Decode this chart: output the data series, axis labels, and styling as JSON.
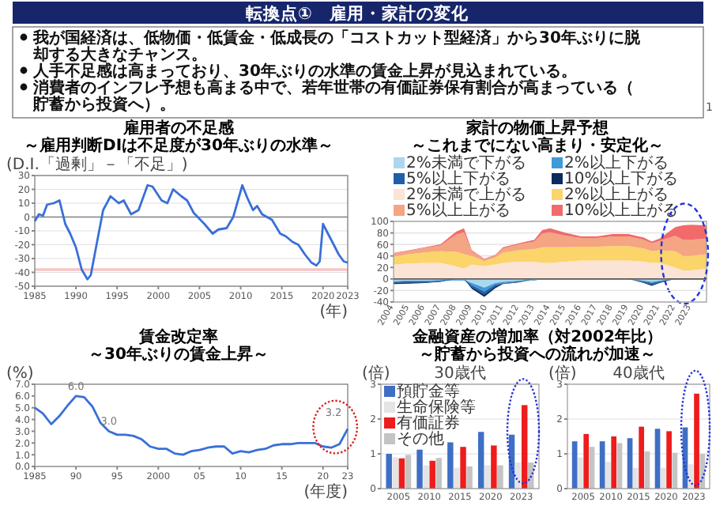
{
  "chart_data": [
    {
      "type": "other",
      "title": "転換点①　雇用・家計の変化",
      "annotations": [
        "我が国経済は、低物価・低賃金・低成長の「コストカット型経済」から30年ぶりに脱却する大きなチャンス。",
        "人手不足感は高まっており、30年ぶりの水準の賃金上昇が見込まれている。",
        "消費者のインフレ予想も高まる中で、若年世帯の有価証券保有割合が高まっている（貯蓄から投資へ）。",
        "1"
      ]
    },
    {
      "type": "line",
      "title": "雇用者の不足感",
      "subtitle": "～雇用判断DIは不足度が30年ぶりの水準～",
      "ylabel": "(D.I.「過剰」－「不足」)",
      "xlabel": "(年)",
      "color": "#3a6fd8",
      "x": [
        1985,
        1985.5,
        1986,
        1986.5,
        1987.3,
        1988,
        1988.7,
        1989.3,
        1990,
        1990.7,
        1991.4,
        1991.8,
        1992.5,
        1993.3,
        1994.2,
        1995.2,
        1995.8,
        1996.7,
        1997.6,
        1998.7,
        1999.3,
        2000.4,
        2001.1,
        2001.8,
        2002.8,
        2003.5,
        2004.3,
        2005.6,
        2006.6,
        2007.3,
        2008.3,
        2009.1,
        2010.2,
        2010.8,
        2011.5,
        2012,
        2012.6,
        2013.8,
        2014.8,
        2015.5,
        2016.3,
        2017,
        2017.8,
        2018.6,
        2019.2,
        2019.6,
        2020,
        2020.6,
        2021.3,
        2021.9,
        2022.5,
        2023
      ],
      "values": [
        -3,
        2,
        1,
        9,
        10,
        12,
        -5,
        -12,
        -22,
        -38,
        -45,
        -42,
        -20,
        5,
        15,
        10,
        12,
        2,
        5,
        23,
        22,
        12,
        10,
        20,
        15,
        12,
        3,
        -5,
        -12,
        -9,
        -8,
        0,
        23,
        14,
        5,
        8,
        2,
        -2,
        -12,
        -14,
        -18,
        -20,
        -27,
        -33,
        -35,
        -32,
        -5,
        -12,
        -20,
        -27,
        -32,
        -33
      ],
      "xlim": [
        1985,
        2023
      ],
      "xticks": [
        1985,
        1990,
        1995,
        2000,
        2005,
        2010,
        2015,
        2020,
        2023
      ],
      "ylim": [
        -50,
        30
      ],
      "yticks": [
        -50,
        -40,
        -30,
        -20,
        -10,
        0,
        10,
        20,
        30
      ],
      "grid": "y",
      "ref_lines": [
        {
          "axis": "y",
          "value": 0,
          "color": "#808080"
        },
        {
          "axis": "y",
          "value": -38,
          "color": "#f7c4c4"
        }
      ]
    },
    {
      "type": "area",
      "title": "家計の物価上昇予想",
      "subtitle": "～これまでにない高まり・安定化～",
      "stacked": true,
      "legend": "top",
      "grid": "y",
      "tick_labels": "y",
      "x": [
        2004,
        2005,
        2006,
        2007,
        2008,
        2008.5,
        2009,
        2009.8,
        2010.5,
        2011,
        2012,
        2013,
        2013.5,
        2014,
        2015,
        2016,
        2017,
        2018,
        2019,
        2020,
        2020.5,
        2021,
        2022,
        2022.5,
        2023,
        2024
      ],
      "xlim": [
        2004,
        2024
      ],
      "ylim": [
        0,
        100
      ],
      "yticks": [
        0,
        20,
        40,
        60,
        80,
        100
      ],
      "series": [
        {
          "name": "2%未満で上がる",
          "color": "#fbe3d6",
          "values": [
            25,
            27,
            28,
            28,
            22,
            18,
            25,
            22,
            25,
            28,
            30,
            30,
            28,
            28,
            30,
            32,
            32,
            32,
            32,
            30,
            28,
            28,
            20,
            15,
            15,
            18
          ]
        },
        {
          "name": "2%以上上がる",
          "color": "#fbd46a",
          "values": [
            14,
            16,
            18,
            20,
            25,
            25,
            15,
            9,
            12,
            18,
            20,
            22,
            27,
            27,
            25,
            24,
            24,
            25,
            25,
            23,
            20,
            22,
            28,
            25,
            25,
            25
          ]
        },
        {
          "name": "5%以上上がる",
          "color": "#f4a582",
          "values": [
            5,
            6,
            8,
            10,
            30,
            38,
            8,
            3,
            4,
            7,
            10,
            13,
            24,
            26,
            20,
            15,
            15,
            17,
            17,
            15,
            14,
            16,
            27,
            28,
            28,
            27
          ]
        },
        {
          "name": "10%以上上がる",
          "color": "#f26a6a",
          "values": [
            1,
            1,
            1,
            2,
            5,
            7,
            2,
            1,
            1,
            2,
            2,
            3,
            6,
            7,
            5,
            3,
            3,
            4,
            4,
            4,
            3,
            4,
            15,
            25,
            26,
            23
          ]
        }
      ]
    },
    {
      "type": "area",
      "stacked": true,
      "legend": "top",
      "grid": "y",
      "x": [
        2004,
        2005,
        2006,
        2007,
        2008,
        2008.5,
        2009,
        2009.8,
        2010.5,
        2011,
        2012,
        2013,
        2013.5,
        2014,
        2015,
        2016,
        2017,
        2018,
        2019,
        2020,
        2020.5,
        2021,
        2022,
        2022.5,
        2023,
        2024
      ],
      "xlim": [
        2004,
        2024
      ],
      "xticks": [
        2004,
        2005,
        2006,
        2007,
        2008,
        2009,
        2010,
        2011,
        2012,
        2013,
        2014,
        2015,
        2016,
        2017,
        2018,
        2019,
        2020,
        2021,
        2022,
        2023
      ],
      "ylim": [
        -40,
        0
      ],
      "yticks": [
        -40,
        -20
      ],
      "series": [
        {
          "name": "2%未満で下がる",
          "color": "#a9d8f0",
          "values": [
            -4,
            -3,
            -3,
            -2,
            -2,
            -2,
            -7,
            -15,
            -7,
            -5,
            -3,
            -2,
            -1,
            -1,
            -1,
            -1,
            -1,
            -1,
            -1,
            -3,
            -5,
            -3,
            -1,
            -1,
            -1,
            -1
          ]
        },
        {
          "name": "2%以上下がる",
          "color": "#3f9ad8",
          "values": [
            -1,
            -1,
            -1,
            -1,
            -1,
            -1,
            -4,
            -7,
            -3,
            -2,
            -1,
            -1,
            0,
            0,
            0,
            0,
            0,
            0,
            0,
            -1,
            -2,
            -1,
            0,
            0,
            0,
            0
          ]
        },
        {
          "name": "5%以上下がる",
          "color": "#1f5fa8",
          "values": [
            -2,
            -2,
            -2,
            -1,
            0,
            0,
            -3,
            -5,
            -3,
            -1,
            -1,
            0,
            0,
            0,
            0,
            0,
            0,
            0,
            0,
            -2,
            -3,
            -2,
            0,
            0,
            0,
            0
          ]
        },
        {
          "name": "10%以上下がる",
          "color": "#0b2a5e",
          "values": [
            -2,
            -2,
            -1,
            -1,
            0,
            0,
            -3,
            -4,
            -3,
            -1,
            -1,
            0,
            0,
            0,
            0,
            0,
            0,
            0,
            0,
            -1,
            -2,
            -1,
            0,
            0,
            0,
            0
          ]
        }
      ]
    },
    {
      "type": "line",
      "title": "賃金改定率",
      "subtitle": "～30年ぶりの賃金上昇～",
      "ylabel": "(%)",
      "xlabel": "(年度)",
      "color": "#3a6fd8",
      "x": [
        1985,
        1986,
        1987,
        1988,
        1989,
        1990,
        1991,
        1992,
        1993,
        1994,
        1995,
        1996,
        1997,
        1998,
        1999,
        2000,
        2001,
        2002,
        2003,
        2004,
        2005,
        2006,
        2007,
        2008,
        2009,
        2010,
        2011,
        2012,
        2013,
        2014,
        2015,
        2016,
        2017,
        2018,
        2019,
        2020,
        2021,
        2022,
        2023
      ],
      "values": [
        5.0,
        4.5,
        3.6,
        4.3,
        5.2,
        6.0,
        5.9,
        5.1,
        3.7,
        3.0,
        2.7,
        2.7,
        2.6,
        2.3,
        1.7,
        1.5,
        1.5,
        1.1,
        1.0,
        1.3,
        1.4,
        1.6,
        1.7,
        1.7,
        1.1,
        1.3,
        1.2,
        1.4,
        1.5,
        1.8,
        1.9,
        1.9,
        2.0,
        2.0,
        2.0,
        1.7,
        1.6,
        1.9,
        3.2
      ],
      "value_labels": [
        null,
        null,
        null,
        null,
        null,
        "6.0",
        null,
        null,
        null,
        "3.0",
        null,
        null,
        null,
        null,
        null,
        null,
        null,
        null,
        null,
        null,
        null,
        null,
        null,
        null,
        null,
        null,
        null,
        null,
        null,
        null,
        null,
        null,
        null,
        null,
        null,
        null,
        null,
        null,
        "3.2"
      ],
      "xlim": [
        1985,
        2023
      ],
      "xticks": [
        1985,
        {
          "value": 1990,
          "label": "90"
        },
        {
          "value": 1995,
          "label": "95"
        },
        2000,
        {
          "value": 2005,
          "label": "05"
        },
        {
          "value": 2010,
          "label": "10"
        },
        {
          "value": 2015,
          "label": "15"
        },
        {
          "value": 2020,
          "label": "20"
        },
        {
          "value": 2023,
          "label": "23"
        }
      ],
      "ylim": [
        0,
        7
      ],
      "yticks": [
        {
          "value": 0,
          "label": "0.0"
        },
        {
          "value": 1,
          "label": "1.0"
        },
        {
          "value": 2,
          "label": "2.0"
        },
        {
          "value": 3,
          "label": "3.0"
        },
        {
          "value": 4,
          "label": "4.0"
        },
        {
          "value": 5,
          "label": "5.0"
        },
        {
          "value": 6,
          "label": "6.0"
        },
        {
          "value": 7,
          "label": "7.0"
        }
      ]
    },
    {
      "type": "bar",
      "title": "30歳代",
      "ylabel": "(倍)",
      "annotations": [
        "金融資産の増加率（対2002年比）",
        "～貯蓄から投資への流れが加速～"
      ],
      "legend": "top left",
      "grid": "y",
      "categories": [
        "2005",
        "2010",
        "2015",
        "2020",
        "2023"
      ],
      "ylim": [
        0,
        3
      ],
      "yticks": [
        0,
        1,
        2,
        3
      ],
      "series": [
        {
          "name": "預貯金等",
          "color": "#3f6fc4",
          "values": [
            1.0,
            1.12,
            1.33,
            1.63,
            1.55
          ]
        },
        {
          "name": "生命保険等",
          "color": "#e4e4e4",
          "values": [
            0.9,
            0.67,
            0.6,
            0.67,
            0.75
          ]
        },
        {
          "name": "有価証券",
          "color": "#ee1c1c",
          "values": [
            0.87,
            0.8,
            1.2,
            1.24,
            2.4
          ]
        },
        {
          "name": "その他",
          "color": "#c4c4c4",
          "values": [
            0.97,
            0.88,
            0.64,
            0.67,
            0.75
          ]
        }
      ]
    },
    {
      "type": "bar",
      "title": "40歳代",
      "ylabel": "(倍)",
      "grid": "y",
      "categories": [
        "2005",
        "2010",
        "2015",
        "2020",
        "2023"
      ],
      "ylim": [
        0,
        3
      ],
      "yticks": [
        0,
        1,
        2,
        3
      ],
      "series": [
        {
          "color": "#3f6fc4",
          "values": [
            1.36,
            1.36,
            1.45,
            1.72,
            1.76
          ]
        },
        {
          "color": "#e4e4e4",
          "values": [
            0.9,
            0.77,
            0.6,
            0.6,
            0.7
          ]
        },
        {
          "color": "#ee1c1c",
          "values": [
            1.57,
            1.5,
            1.78,
            1.65,
            2.73
          ]
        },
        {
          "color": "#c4c4c4",
          "values": [
            1.2,
            1.31,
            1.07,
            1.03,
            1.0
          ]
        }
      ]
    }
  ]
}
